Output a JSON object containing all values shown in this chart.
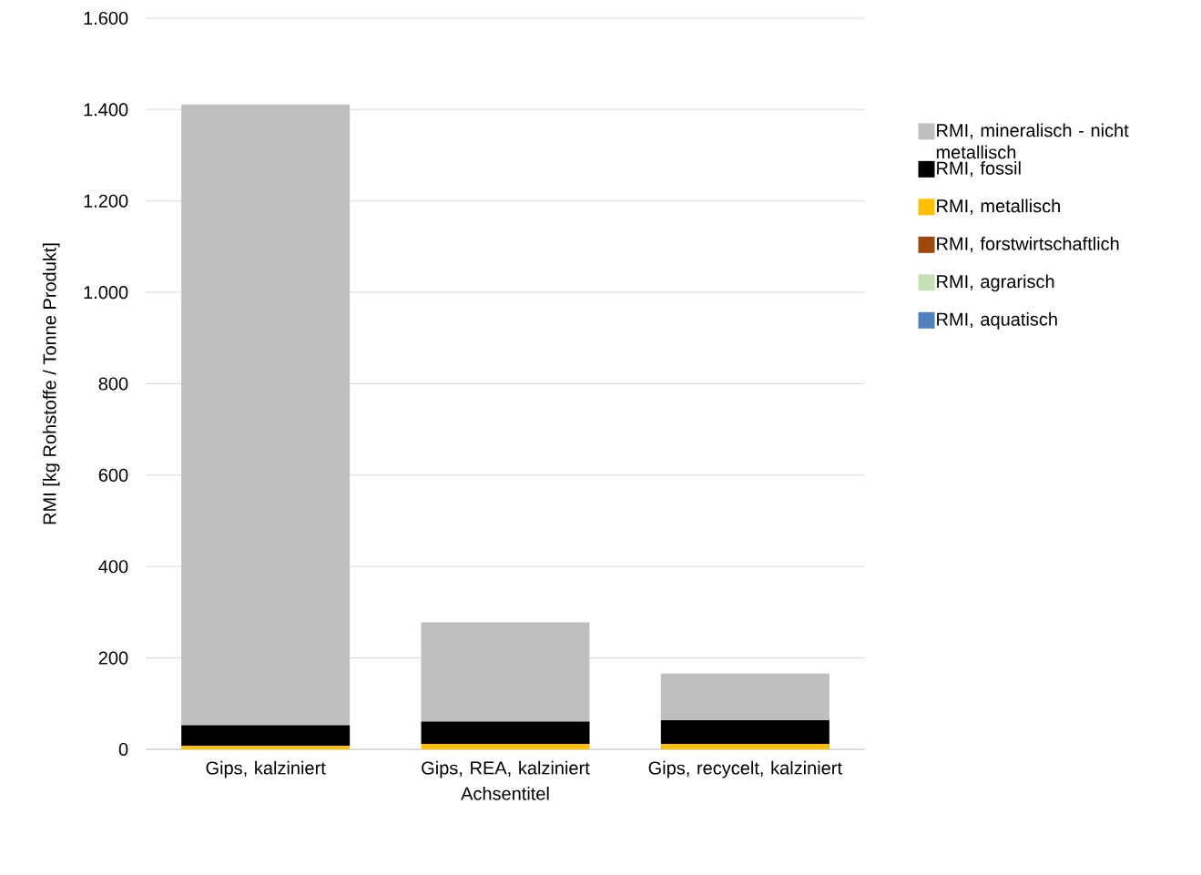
{
  "chart_data": {
    "type": "bar",
    "stacked": true,
    "xlabel": "Achsentitel",
    "ylabel": "RMI [kg Rohstoffe / Tonne Produkt]",
    "categories": [
      "Gips, kalziniert",
      "Gips, REA, kalziniert",
      "Gips, recycelt, kalziniert"
    ],
    "ylim": [
      0,
      1600
    ],
    "yticks": [
      0,
      200,
      400,
      600,
      800,
      {
        "value": 1000,
        "label": "1.000"
      },
      {
        "value": 1200,
        "label": "1.200"
      },
      {
        "value": 1400,
        "label": "1.400"
      },
      {
        "value": 1600,
        "label": "1.600"
      }
    ],
    "grid": "y",
    "legend": "right",
    "series": [
      {
        "name": "RMI, aquatisch",
        "color": "#4e81bd",
        "values": [
          0,
          0,
          0
        ]
      },
      {
        "name": "RMI, agrarisch",
        "color": "#c5e0b4",
        "values": [
          0,
          0,
          0
        ]
      },
      {
        "name": "RMI, forstwirtschaftlich",
        "color": "#9e480e",
        "values": [
          0,
          0,
          0
        ]
      },
      {
        "name": "RMI, metallisch",
        "color": "#ffc000",
        "values": [
          8,
          12,
          12
        ]
      },
      {
        "name": "RMI, fossil",
        "color": "#000000",
        "values": [
          45,
          49,
          52
        ]
      },
      {
        "name": "RMI, mineralisch - nicht metallisch",
        "color": "#bfbfbf",
        "values": [
          1358,
          217,
          102
        ]
      }
    ]
  }
}
